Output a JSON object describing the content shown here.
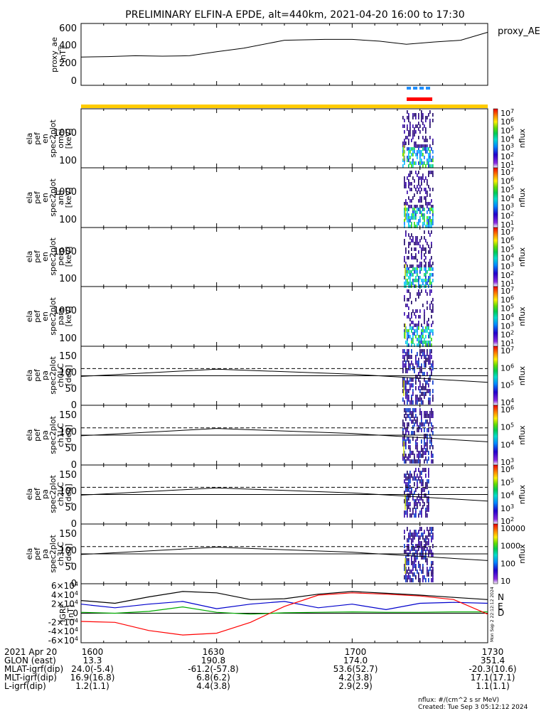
{
  "title": "PRELIMINARY ELFIN-A EPDE, alt=440km, 2021-04-20 16:00 to 17:30",
  "colors": {
    "axis": "#000000",
    "yellow_bar": "#ffcc00",
    "blue_bar": "#1f8fff",
    "red_bar": "#ff0000",
    "igrf_N": "#0000cc",
    "igrf_E": "#00aa00",
    "igrf_D": "#ff0000",
    "total": "#000000"
  },
  "chart_data": [
    {
      "type": "line",
      "name": "proxy_ae",
      "legend": "proxy_AE",
      "ylabel_lines": [
        "proxy_ae",
        "[nT]"
      ],
      "ylim": [
        -50,
        650
      ],
      "yticks": [
        "0",
        "200",
        "400",
        "600"
      ],
      "x": [
        16.0,
        16.1,
        16.2,
        16.3,
        16.4,
        16.5,
        16.6,
        16.75,
        16.9,
        17.0,
        17.1,
        17.2,
        17.3,
        17.4,
        17.5
      ],
      "values": [
        270,
        275,
        285,
        280,
        285,
        330,
        370,
        460,
        470,
        470,
        450,
        415,
        440,
        460,
        550
      ]
    },
    {
      "type": "heatmap",
      "name": "omni",
      "ylabel_lines": [
        "ela",
        "pef",
        "en",
        "spec2plot",
        "omni",
        "[keV]"
      ],
      "yticks": [
        "100",
        "1000"
      ],
      "colorbar_ticks": [
        "10^7",
        "10^6",
        "10^5",
        "10^4",
        "10^3",
        "10^2",
        "10^1"
      ],
      "colorbar_label": "nflux"
    },
    {
      "type": "heatmap",
      "name": "anti",
      "ylabel_lines": [
        "ela",
        "pef",
        "en",
        "spec2plot",
        "anti",
        "[keV]"
      ],
      "yticks": [
        "100",
        "1000"
      ],
      "colorbar_ticks": [
        "10^7",
        "10^6",
        "10^5",
        "10^4",
        "10^3",
        "10^2",
        "10^1"
      ],
      "colorbar_label": "nflux"
    },
    {
      "type": "heatmap",
      "name": "perp",
      "ylabel_lines": [
        "ela",
        "pef",
        "en",
        "spec2plot",
        "perp",
        "[keV]"
      ],
      "yticks": [
        "100",
        "1000"
      ],
      "colorbar_ticks": [
        "10^7",
        "10^6",
        "10^5",
        "10^4",
        "10^3",
        "10^2",
        "10^1"
      ],
      "colorbar_label": "nflux"
    },
    {
      "type": "heatmap",
      "name": "para",
      "ylabel_lines": [
        "ela",
        "pef",
        "en",
        "spec2plot",
        "para",
        "[keV]"
      ],
      "yticks": [
        "100",
        "1000"
      ],
      "colorbar_ticks": [
        "10^7",
        "10^6",
        "10^5",
        "10^4",
        "10^3",
        "10^2",
        "10^1"
      ],
      "colorbar_label": "nflux"
    },
    {
      "type": "heatmap",
      "name": "ch0LC",
      "ylabel_lines": [
        "ela",
        "pef",
        "pa",
        "spec2plot",
        "ch0LC",
        "[deg]"
      ],
      "ylim": [
        0,
        180
      ],
      "yticks": [
        "0",
        "50",
        "100",
        "150"
      ],
      "colorbar_ticks": [
        "10^7",
        "10^6",
        "10^5",
        "10^4"
      ],
      "colorbar_label": "nflux"
    },
    {
      "type": "heatmap",
      "name": "ch1LC",
      "ylabel_lines": [
        "ela",
        "pef",
        "pa",
        "spec2plot",
        "ch1LC",
        "[deg]"
      ],
      "ylim": [
        0,
        180
      ],
      "yticks": [
        "0",
        "50",
        "100",
        "150"
      ],
      "colorbar_ticks": [
        "10^6",
        "10^5",
        "10^4",
        "10^3"
      ],
      "colorbar_label": "nflux"
    },
    {
      "type": "heatmap",
      "name": "ch2LC",
      "ylabel_lines": [
        "ela",
        "pef",
        "pa",
        "spec2plot",
        "ch2LC",
        "[deg]"
      ],
      "ylim": [
        0,
        180
      ],
      "yticks": [
        "0",
        "50",
        "100",
        "150"
      ],
      "colorbar_ticks": [
        "10^6",
        "10^5",
        "10^4",
        "10^3",
        "10^2"
      ],
      "colorbar_label": "nflux"
    },
    {
      "type": "heatmap",
      "name": "ch3LC",
      "ylabel_lines": [
        "ela",
        "pef",
        "pa",
        "spec2plot",
        "ch3LC",
        "[deg]"
      ],
      "ylim": [
        0,
        180
      ],
      "yticks": [
        "0",
        "50",
        "100",
        "150"
      ],
      "colorbar_ticks": [
        "10000",
        "1000",
        "100",
        "10"
      ],
      "colorbar_label": "nflux"
    },
    {
      "type": "line",
      "name": "IGRF",
      "ylabel_lines": [
        "IGRF",
        "[nT]"
      ],
      "ylim": [
        -65000,
        65000
      ],
      "yticks": [
        "6×10^4",
        "4×10^4",
        "2×10^4",
        "0",
        "-2×10^4",
        "-4×10^4",
        "-6×10^4"
      ],
      "legend": [
        "N",
        "E",
        "D"
      ],
      "side_text": "Mon Sep  2 22:12:12 2024",
      "x": [
        16.0,
        16.125,
        16.25,
        16.375,
        16.5,
        16.625,
        16.75,
        16.875,
        17.0,
        17.125,
        17.25,
        17.375,
        17.5
      ],
      "series": [
        {
          "name": "N",
          "values": [
            20000,
            12000,
            20000,
            26000,
            10000,
            20000,
            26000,
            12000,
            20000,
            8000,
            22000,
            24000,
            22000
          ]
        },
        {
          "name": "E",
          "values": [
            2000,
            0,
            4000,
            14000,
            2000,
            -2000,
            1000,
            2000,
            3000,
            2000,
            2000,
            3000,
            3000
          ]
        },
        {
          "name": "D",
          "values": [
            -18000,
            -20000,
            -38000,
            -48000,
            -44000,
            -20000,
            15000,
            40000,
            45000,
            42000,
            38000,
            30000,
            -2000
          ]
        },
        {
          "name": "total",
          "values": [
            28000,
            22000,
            36000,
            48000,
            45000,
            30000,
            32000,
            42000,
            48000,
            44000,
            40000,
            35000,
            30000
          ]
        }
      ]
    }
  ],
  "time_axis": {
    "labels": [
      "1600",
      "1630",
      "1700",
      "1730"
    ],
    "range": [
      16.0,
      17.5
    ]
  },
  "orbit_table": {
    "rows": [
      {
        "label": "2021 Apr 20",
        "values": [
          "1600",
          "1630",
          "1700",
          "1730"
        ]
      },
      {
        "label": "GLON (east)",
        "values": [
          "13.3",
          "190.8",
          "174.0",
          "351.4"
        ]
      },
      {
        "label": "MLAT-igrf(dip)",
        "values": [
          "24.0(-5.4)",
          "-61.2(-57.8)",
          "53.6(52.7)",
          "-20.3(10.6)"
        ]
      },
      {
        "label": "MLT-igrf(dip)",
        "values": [
          "16.9(16.8)",
          "6.8(6.2)",
          "4.2(3.8)",
          "17.1(17.1)"
        ]
      },
      {
        "label": "L-igrf(dip)",
        "values": [
          "1.2(1.1)",
          "4.4(3.8)",
          "2.9(2.9)",
          "1.1(1.1)"
        ]
      }
    ]
  },
  "footer": {
    "units": "nflux: #/(cm^2 s sr MeV)",
    "created": "Created: Tue Sep  3 05:12:12 2024"
  }
}
